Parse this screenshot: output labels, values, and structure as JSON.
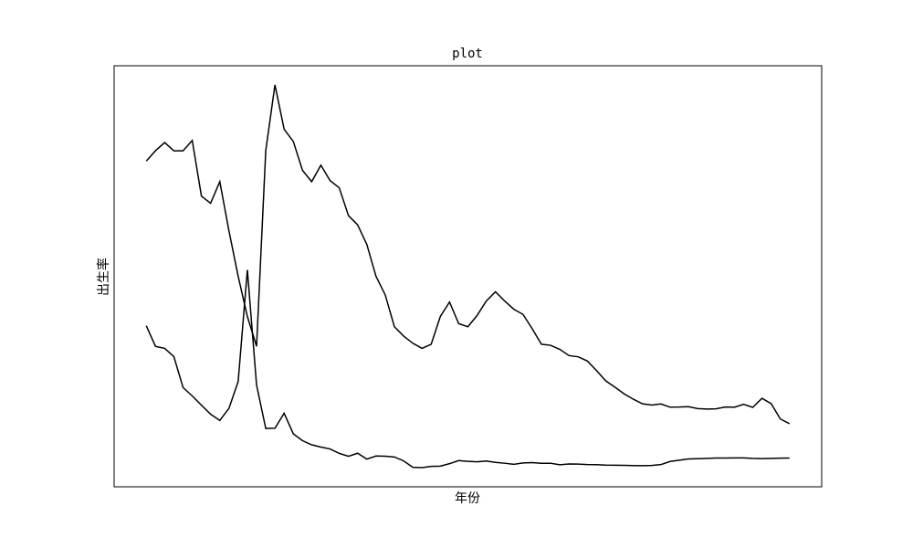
{
  "chart_data": {
    "type": "line",
    "title": "plot",
    "x_label": "年份",
    "y_label": "出生率",
    "ylim": [
      4.35,
      45.26
    ],
    "xlim": [
      -3.5,
      73.5
    ],
    "series": [
      {
        "color": "#000000",
        "values": [
          36.0,
          37.0,
          37.8,
          37.0,
          37.0,
          38.0,
          32.6,
          31.9,
          34.0,
          29.2,
          24.8,
          20.9,
          18.0,
          37.0,
          43.4,
          39.1,
          37.9,
          35.1,
          34.0,
          35.6,
          34.1,
          33.4,
          30.7,
          29.8,
          27.9,
          24.8,
          23.0,
          19.9,
          19.0,
          18.3,
          17.8,
          18.2,
          20.9,
          22.3,
          20.2,
          19.9,
          21.0,
          22.4,
          23.3,
          22.4,
          21.6,
          21.1,
          19.7,
          18.2,
          18.1,
          17.7,
          17.1,
          16.98,
          16.57,
          15.64,
          14.64,
          14.03,
          13.38,
          12.86,
          12.41,
          12.29,
          12.4,
          12.09,
          12.1,
          12.14,
          11.95,
          11.9,
          11.93,
          12.1,
          12.08,
          12.37,
          12.07,
          12.95,
          12.43,
          10.94,
          10.48
        ]
      },
      {
        "color": "#000000",
        "values": [
          20.0,
          18.0,
          17.8,
          17.0,
          14.0,
          13.18,
          12.28,
          11.4,
          10.8,
          11.98,
          14.59,
          25.43,
          14.24,
          10.02,
          10.04,
          11.5,
          9.5,
          8.83,
          8.43,
          8.21,
          8.03,
          7.6,
          7.32,
          7.61,
          7.04,
          7.34,
          7.32,
          7.25,
          6.87,
          6.25,
          6.21,
          6.34,
          6.36,
          6.6,
          6.9,
          6.82,
          6.78,
          6.86,
          6.72,
          6.64,
          6.54,
          6.67,
          6.7,
          6.64,
          6.64,
          6.49,
          6.57,
          6.56,
          6.51,
          6.5,
          6.46,
          6.45,
          6.43,
          6.41,
          6.4,
          6.42,
          6.51,
          6.81,
          6.93,
          7.06,
          7.08,
          7.11,
          7.14,
          7.15,
          7.16,
          7.16,
          7.11,
          7.09,
          7.11,
          7.13,
          7.14
        ]
      }
    ]
  }
}
